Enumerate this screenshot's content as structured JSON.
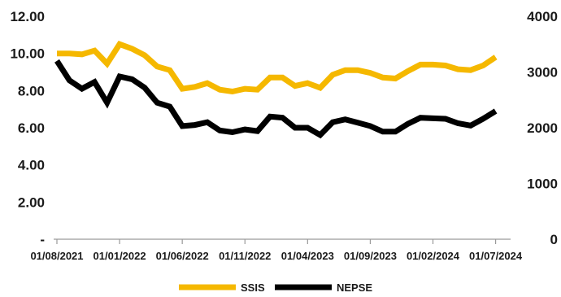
{
  "chart_data": {
    "type": "line",
    "title": "",
    "xlabel": "",
    "ylabel": "",
    "x": [
      "01/08/2021",
      "01/09/2021",
      "01/10/2021",
      "01/11/2021",
      "01/12/2021",
      "01/01/2022",
      "01/02/2022",
      "01/03/2022",
      "01/04/2022",
      "01/05/2022",
      "01/06/2022",
      "01/07/2022",
      "01/08/2022",
      "01/09/2022",
      "01/10/2022",
      "01/11/2022",
      "01/12/2022",
      "01/01/2023",
      "01/02/2023",
      "01/03/2023",
      "01/04/2023",
      "01/05/2023",
      "01/06/2023",
      "01/07/2023",
      "01/08/2023",
      "01/09/2023",
      "01/10/2023",
      "01/11/2023",
      "01/12/2023",
      "01/01/2024",
      "01/02/2024",
      "01/03/2024",
      "01/04/2024",
      "01/05/2024",
      "01/06/2024",
      "01/07/2024",
      "01/08/2024"
    ],
    "x_tick_labels": [
      "01/08/2021",
      "01/01/2022",
      "01/06/2022",
      "01/11/2022",
      "01/04/2023",
      "01/09/2023",
      "01/02/2024",
      "01/07/2024"
    ],
    "y_left": {
      "ticks": [
        "-",
        "2.00",
        "4.00",
        "6.00",
        "8.00",
        "10.00",
        "12.00"
      ],
      "ylim": [
        0,
        12
      ]
    },
    "y_right": {
      "ticks": [
        "0",
        "1000",
        "2000",
        "3000",
        "4000"
      ],
      "ylim": [
        0,
        4000
      ]
    },
    "legend": {
      "placement": "bottom-center"
    },
    "grid": false,
    "series": [
      {
        "name": "SSIS",
        "axis": "left",
        "color": "#f5b800",
        "values": [
          10.0,
          10.0,
          9.95,
          10.15,
          9.45,
          10.5,
          10.25,
          9.9,
          9.3,
          9.1,
          8.1,
          8.2,
          8.4,
          8.05,
          7.95,
          8.1,
          8.05,
          8.7,
          8.7,
          8.25,
          8.4,
          8.15,
          8.85,
          9.1,
          9.1,
          8.95,
          8.7,
          8.65,
          9.05,
          9.4,
          9.4,
          9.35,
          9.15,
          9.1,
          9.35,
          9.8,
          null
        ]
      },
      {
        "name": "NEPSE",
        "axis": "right",
        "color": "#000000",
        "values": [
          3200,
          2850,
          2700,
          2820,
          2450,
          2920,
          2870,
          2720,
          2450,
          2380,
          2030,
          2050,
          2100,
          1950,
          1920,
          1970,
          1940,
          2200,
          2180,
          2000,
          2000,
          1870,
          2100,
          2150,
          2090,
          2030,
          1930,
          1930,
          2070,
          2180,
          2170,
          2160,
          2080,
          2040,
          2160,
          2300,
          null
        ]
      }
    ]
  }
}
